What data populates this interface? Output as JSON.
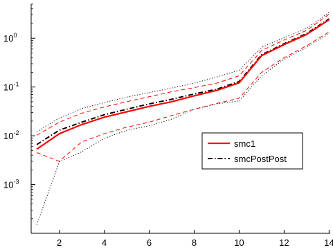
{
  "chart_data": {
    "type": "line",
    "title": "",
    "xlabel": "",
    "ylabel": "",
    "xlim": [
      0.75,
      14.05
    ],
    "ylim": [
      0.0001,
      5
    ],
    "y_scale": "log",
    "grid": false,
    "legend_position": "right-middle",
    "x_ticks": [
      2,
      4,
      6,
      8,
      10,
      12,
      14
    ],
    "y_ticks": [
      {
        "value": 0.001,
        "base": "10",
        "exp": "-3"
      },
      {
        "value": 0.01,
        "base": "10",
        "exp": "-2"
      },
      {
        "value": 0.1,
        "base": "10",
        "exp": "-1"
      },
      {
        "value": 1,
        "base": "10",
        "exp": "0"
      }
    ],
    "x": [
      1,
      2,
      3,
      4,
      5,
      6,
      7,
      8,
      9,
      10,
      11,
      12,
      13,
      14
    ],
    "series": [
      {
        "name": "smc1",
        "color": "#ff0000",
        "style": "solid",
        "values": [
          0.0053,
          0.011,
          0.017,
          0.024,
          0.031,
          0.04,
          0.05,
          0.066,
          0.085,
          0.122,
          0.44,
          0.74,
          1.2,
          2.4
        ],
        "legend": true
      },
      {
        "name": "smcPostPost",
        "color": "#000000",
        "style": "dashdot",
        "values": [
          0.0066,
          0.013,
          0.019,
          0.027,
          0.035,
          0.045,
          0.056,
          0.072,
          0.09,
          0.13,
          0.46,
          0.77,
          1.25,
          2.5
        ],
        "legend": true
      },
      {
        "color": "#ff0000",
        "style": "dashed",
        "values": [
          0.0102,
          0.019,
          0.029,
          0.039,
          0.05,
          0.063,
          0.08,
          0.097,
          0.12,
          0.17,
          0.56,
          0.92,
          1.45,
          3.1
        ],
        "legend": false
      },
      {
        "color": "#ff0000",
        "style": "dashed",
        "values": [
          0.0045,
          0.003,
          0.0075,
          0.011,
          0.015,
          0.019,
          0.026,
          0.035,
          0.046,
          0.059,
          0.2,
          0.4,
          0.7,
          1.35
        ],
        "legend": false
      },
      {
        "color": "#000000",
        "style": "dotted",
        "values": [
          0.0121,
          0.023,
          0.036,
          0.048,
          0.062,
          0.077,
          0.095,
          0.12,
          0.16,
          0.22,
          0.65,
          1.02,
          1.6,
          3.4
        ],
        "legend": false
      },
      {
        "color": "#000000",
        "style": "dotted",
        "values": [
          0.00015,
          0.0029,
          0.0047,
          0.0088,
          0.013,
          0.016,
          0.022,
          0.035,
          0.045,
          0.052,
          0.17,
          0.37,
          0.65,
          1.25
        ],
        "legend": false
      }
    ]
  }
}
